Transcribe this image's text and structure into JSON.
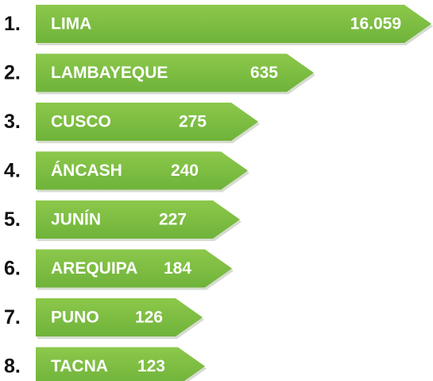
{
  "items": [
    {
      "rank": "1.",
      "name": "LIMA",
      "value": "16.059"
    },
    {
      "rank": "2.",
      "name": "LAMBAYEQUE",
      "value": "635"
    },
    {
      "rank": "3.",
      "name": "CUSCO",
      "value": "275"
    },
    {
      "rank": "4.",
      "name": "ÁNCASH",
      "value": "240"
    },
    {
      "rank": "5.",
      "name": "JUNÍN",
      "value": "227"
    },
    {
      "rank": "6.",
      "name": "AREQUIPA",
      "value": "184"
    },
    {
      "rank": "7.",
      "name": "PUNO",
      "value": "126"
    },
    {
      "rank": "8.",
      "name": "TACNA",
      "value": "123"
    }
  ]
}
